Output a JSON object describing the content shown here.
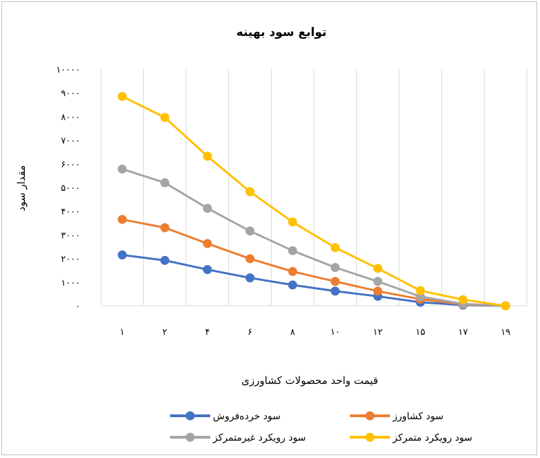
{
  "colors": {
    "grid": "#d9d9d9",
    "blue": "#4472c4",
    "orange": "#ed7d31",
    "gray": "#a5a5a5",
    "yellow": "#ffc000"
  },
  "chart_data": {
    "type": "line",
    "title": "توابع سود بهینه",
    "xlabel": "قیمت واحد محصولات کشاورزی",
    "ylabel": "مقدار سود",
    "categories": [
      "۱",
      "۲",
      "۴",
      "۶",
      "۸",
      "۱۰",
      "۱۲",
      "۱۵",
      "۱۷",
      "۱۹"
    ],
    "ylim": [
      0,
      10000
    ],
    "yticks": [
      {
        "value": 0,
        "label": "۰"
      },
      {
        "value": 1000,
        "label": "۱۰۰۰"
      },
      {
        "value": 2000,
        "label": "۲۰۰۰"
      },
      {
        "value": 3000,
        "label": "۳۰۰۰"
      },
      {
        "value": 4000,
        "label": "۴۰۰۰"
      },
      {
        "value": 5000,
        "label": "۵۰۰۰"
      },
      {
        "value": 6000,
        "label": "۶۰۰۰"
      },
      {
        "value": 7000,
        "label": "۷۰۰۰"
      },
      {
        "value": 8000,
        "label": "۸۰۰۰"
      },
      {
        "value": 9000,
        "label": "۹۰۰۰"
      },
      {
        "value": 10000,
        "label": "۱۰۰۰۰"
      }
    ],
    "grid": "vertical",
    "legend_position": "bottom",
    "series": [
      {
        "name": "سود خرده‌فروش",
        "color": "#4472c4",
        "values": [
          2150,
          1920,
          1530,
          1180,
          880,
          620,
          400,
          150,
          30,
          0
        ]
      },
      {
        "name": "سود کشاورز",
        "color": "#ed7d31",
        "values": [
          3650,
          3300,
          2630,
          1990,
          1450,
          1030,
          620,
          280,
          60,
          0
        ]
      },
      {
        "name": "سود رویکرد غیرمتمرکز",
        "color": "#a5a5a5",
        "values": [
          5780,
          5200,
          4120,
          3160,
          2330,
          1620,
          1030,
          390,
          80,
          0
        ]
      },
      {
        "name": "سود رویکرد متمرکز",
        "color": "#ffc000",
        "values": [
          8850,
          7960,
          6320,
          4820,
          3540,
          2460,
          1580,
          640,
          260,
          0
        ]
      }
    ]
  }
}
